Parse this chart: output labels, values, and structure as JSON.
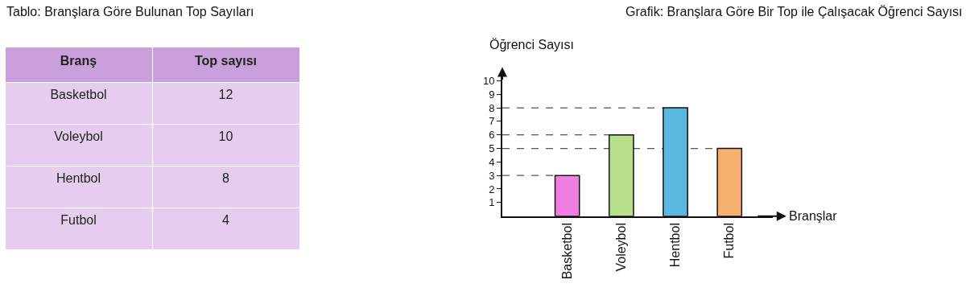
{
  "chart_data": [
    {
      "type": "other",
      "title": "Tablo: Branşlara Göre Bulunan Top Sayıları",
      "xlabel": "Branş",
      "ylabel": "Top sayısı",
      "categories": [
        "Basketbol",
        "Voleybol",
        "Hentbol",
        "Futbol"
      ],
      "values": [
        12,
        10,
        8,
        4
      ],
      "data_labels": true,
      "color": "#e6cdf0"
    },
    {
      "type": "bar",
      "title": "Grafik: Branşlara Göre Bir Top ile Çalışacak Öğrenci Sayısı",
      "xlabel": "Branşlar",
      "ylabel": "Öğrenci Sayısı",
      "categories": [
        "Basketbol",
        "Voleybol",
        "Hentbol",
        "Futbol"
      ],
      "values": [
        3,
        6,
        8,
        5
      ],
      "colors": [
        "#f07ee0",
        "#b8e08a",
        "#5ab8e0",
        "#f5b070"
      ],
      "ylim": [
        0,
        10.5
      ],
      "yticks": [
        1,
        2,
        3,
        4,
        5,
        6,
        7,
        8,
        9,
        10
      ],
      "grid": false,
      "ref_lines": [
        {
          "axis": "y",
          "value": 3,
          "line_style": "dashed",
          "color": "#555555"
        },
        {
          "axis": "y",
          "value": 6,
          "line_style": "dashed",
          "color": "#555555"
        },
        {
          "axis": "y",
          "value": 8,
          "line_style": "dashed",
          "color": "#555555"
        },
        {
          "axis": "y",
          "value": 5,
          "line_style": "dashed",
          "color": "#555555"
        }
      ]
    }
  ]
}
